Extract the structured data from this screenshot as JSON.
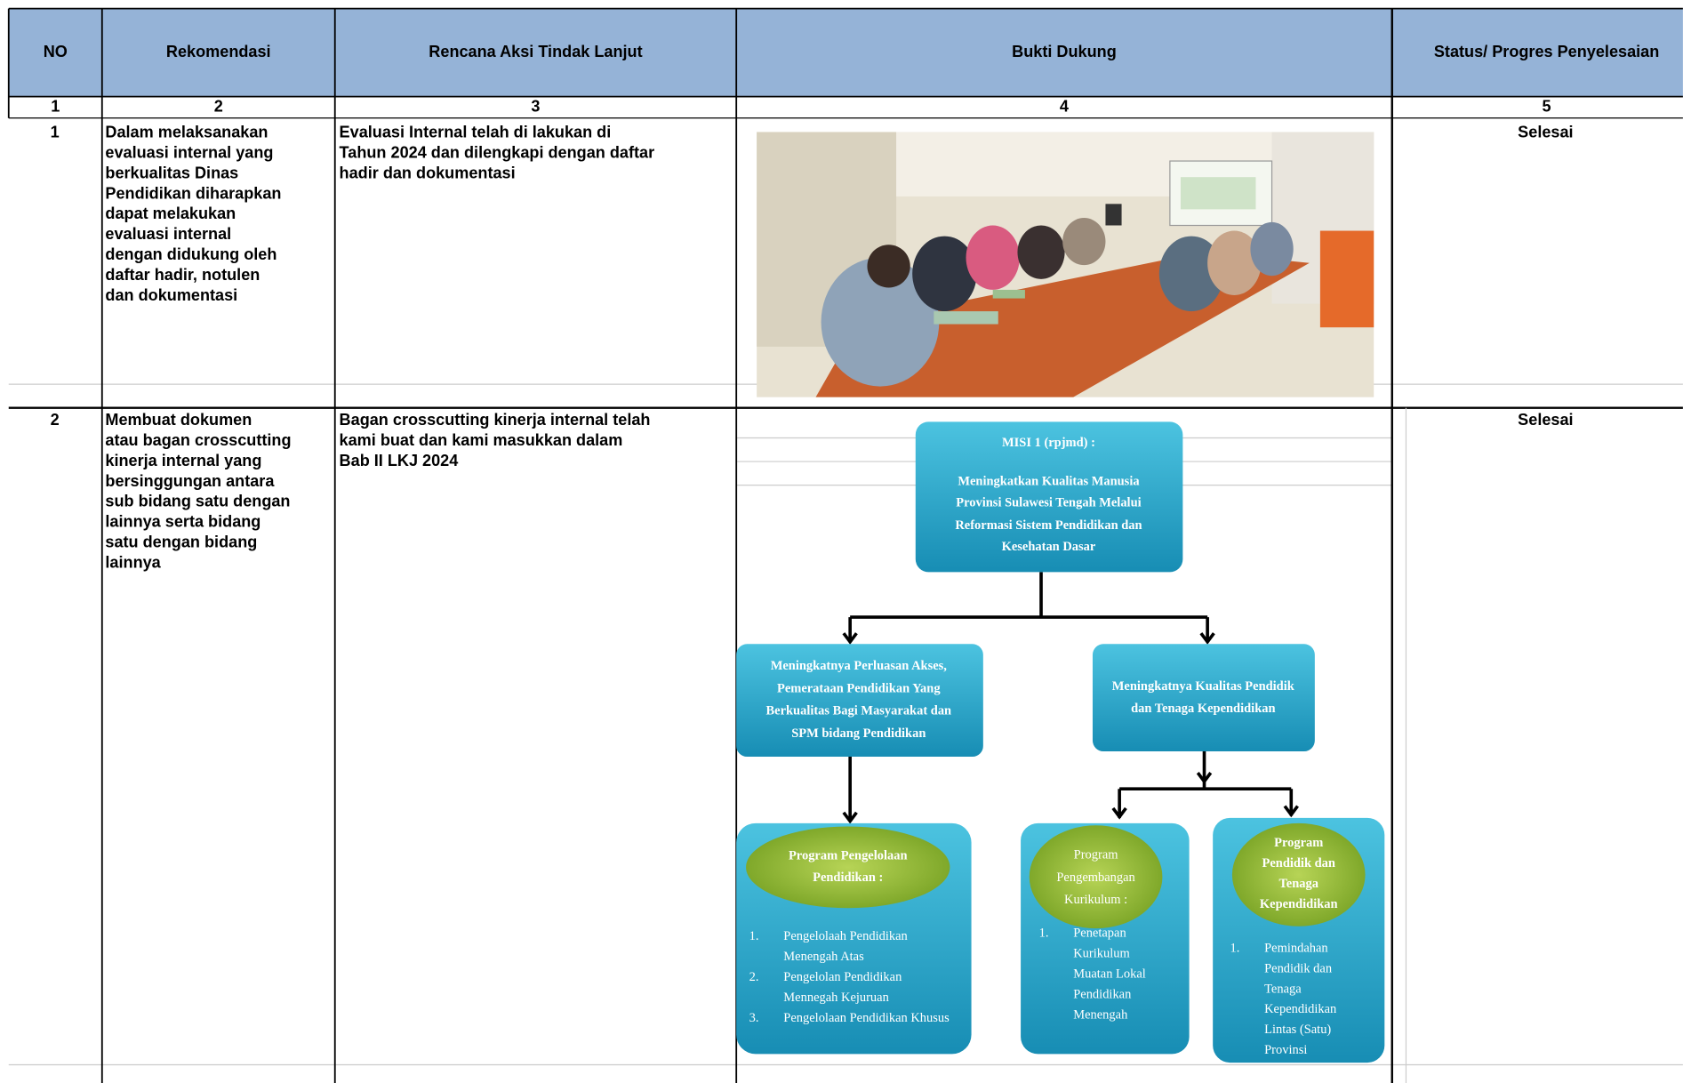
{
  "table": {
    "headers": [
      "NO",
      "Rekomendasi",
      "Rencana Aksi Tindak Lanjut",
      "Bukti Dukung",
      "Status/ Progres Penyelesaian"
    ],
    "numbers": [
      "1",
      "2",
      "3",
      "4",
      "5"
    ],
    "rows": [
      {
        "no": "1",
        "rekomendasi": [
          "Dalam melaksanakan",
          "evaluasi internal yang",
          "berkualitas Dinas",
          "Pendidikan diharapkan",
          "dapat melakukan",
          "evaluasi internal",
          "dengan didukung oleh",
          "daftar hadir, notulen",
          "dan dokumentasi"
        ],
        "rencana": [
          "Evaluasi Internal telah di lakukan di",
          "Tahun 2024 dan dilengkapi dengan daftar",
          "hadir dan dokumentasi"
        ],
        "status": "Selesai"
      },
      {
        "no": "2",
        "rekomendasi": [
          "Membuat dokumen",
          "atau bagan crosscutting",
          "kinerja internal yang",
          "bersinggungan antara",
          "sub bidang satu dengan",
          "lainnya serta bidang",
          "satu dengan bidang",
          "lainnya"
        ],
        "rencana": [
          "Bagan crosscutting kinerja internal telah",
          "kami buat dan kami masukkan dalam",
          "Bab II LKJ  2024"
        ],
        "status": "Selesai"
      }
    ]
  },
  "diagram": {
    "misi": [
      "MISI 1 (rpjmd) :",
      "Meningkatkan Kualitas Manusia",
      "Provinsi Sulawesi Tengah Melalui",
      "Reformasi Sistem Pendidikan dan",
      "Kesehatan Dasar"
    ],
    "left": [
      "Meningkatnya Perluasan Akses,",
      "Pemerataan Pendidikan Yang",
      "Berkualitas Bagi Masyarakat dan",
      "SPM bidang Pendidikan"
    ],
    "right": [
      "Meningkatnya Kualitas Pendidik",
      "dan Tenaga Kependidikan"
    ],
    "programs": [
      {
        "title": [
          "Program Pengelolaan",
          "Pendidikan :"
        ],
        "items": [
          {
            "number": "1.",
            "lines": [
              "Pengelolaah Pendidikan",
              "Menengah Atas"
            ]
          },
          {
            "number": "2.",
            "lines": [
              "Pengelolan Pendidikan",
              "Mennegah Kejuruan"
            ]
          },
          {
            "number": "3.",
            "lines": [
              "Pengelolaan Pendidikan Khusus"
            ]
          }
        ]
      },
      {
        "title": [
          "Program",
          "Pengembangan",
          "Kurikulum :"
        ],
        "items": [
          {
            "number": "1.",
            "lines": [
              "Penetapan",
              "Kurikulum",
              "Muatan Lokal",
              "Pendidikan",
              "Menengah"
            ]
          }
        ]
      },
      {
        "title": [
          "Program",
          "Pendidik dan",
          "Tenaga",
          "Kependidikan"
        ],
        "items": [
          {
            "number": "1.",
            "lines": [
              "Pemindahan",
              "Pendidik dan",
              "Tenaga",
              "Kependidikan",
              "Lintas (Satu)",
              "Provinsi"
            ]
          }
        ]
      }
    ]
  }
}
